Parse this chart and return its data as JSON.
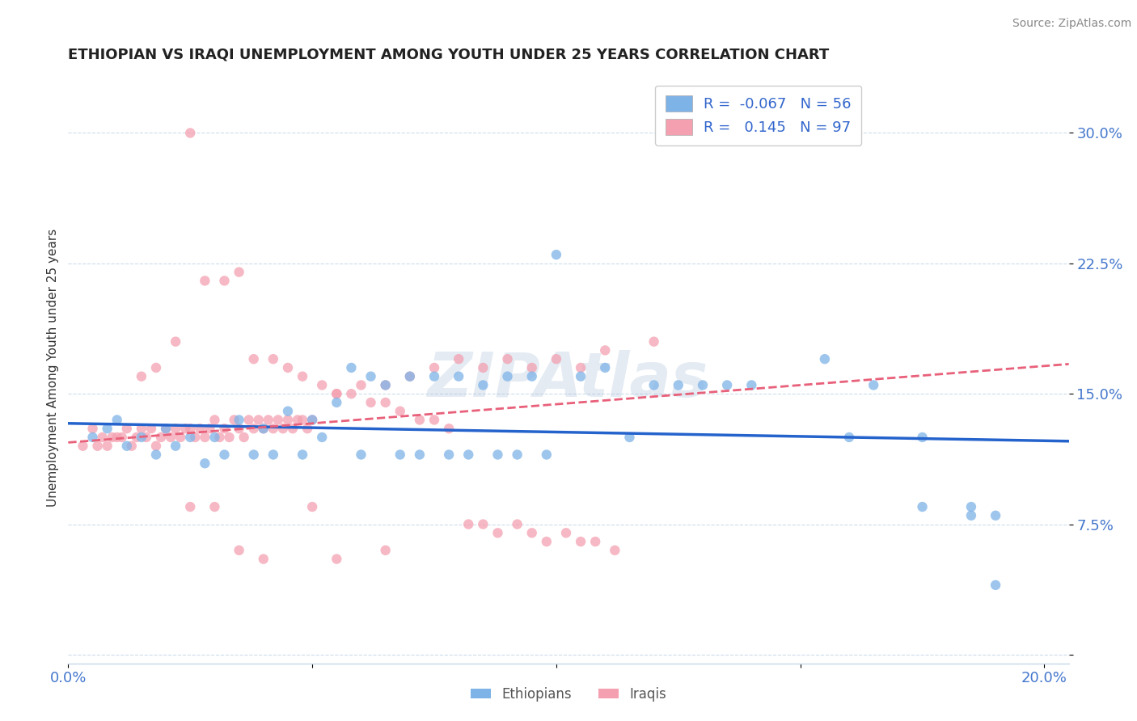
{
  "title": "ETHIOPIAN VS IRAQI UNEMPLOYMENT AMONG YOUTH UNDER 25 YEARS CORRELATION CHART",
  "source": "Source: ZipAtlas.com",
  "ylabel": "Unemployment Among Youth under 25 years",
  "xlim": [
    0.0,
    0.205
  ],
  "ylim": [
    -0.005,
    0.335
  ],
  "yticks": [
    0.0,
    0.075,
    0.15,
    0.225,
    0.3
  ],
  "ytick_labels": [
    "",
    "7.5%",
    "15.0%",
    "22.5%",
    "30.0%"
  ],
  "xticks": [
    0.0,
    0.05,
    0.1,
    0.15,
    0.2
  ],
  "xtick_labels": [
    "0.0%",
    "",
    "",
    "",
    "20.0%"
  ],
  "blue_R": -0.067,
  "blue_N": 56,
  "pink_R": 0.145,
  "pink_N": 97,
  "blue_color": "#7EB3E8",
  "pink_color": "#F4A0B0",
  "trend_blue_color": "#2563CC",
  "trend_pink_color": "#E8607A",
  "watermark": "ZIPAtlas",
  "watermark_color": "#A8BDD8",
  "legend_label_blue": "Ethiopians",
  "legend_label_pink": "Iraqis",
  "blue_scatter_x": [
    0.005,
    0.008,
    0.01,
    0.012,
    0.015,
    0.018,
    0.02,
    0.022,
    0.025,
    0.028,
    0.03,
    0.032,
    0.035,
    0.038,
    0.04,
    0.042,
    0.045,
    0.048,
    0.05,
    0.052,
    0.055,
    0.058,
    0.06,
    0.062,
    0.065,
    0.068,
    0.07,
    0.072,
    0.075,
    0.078,
    0.08,
    0.082,
    0.085,
    0.088,
    0.09,
    0.092,
    0.095,
    0.098,
    0.1,
    0.105,
    0.11,
    0.115,
    0.12,
    0.125,
    0.13,
    0.135,
    0.14,
    0.155,
    0.165,
    0.175,
    0.185,
    0.19,
    0.175,
    0.16,
    0.185,
    0.19
  ],
  "blue_scatter_y": [
    0.125,
    0.13,
    0.135,
    0.12,
    0.125,
    0.115,
    0.13,
    0.12,
    0.125,
    0.11,
    0.125,
    0.115,
    0.135,
    0.115,
    0.13,
    0.115,
    0.14,
    0.115,
    0.135,
    0.125,
    0.145,
    0.165,
    0.115,
    0.16,
    0.155,
    0.115,
    0.16,
    0.115,
    0.16,
    0.115,
    0.16,
    0.115,
    0.155,
    0.115,
    0.16,
    0.115,
    0.16,
    0.115,
    0.23,
    0.16,
    0.165,
    0.125,
    0.155,
    0.155,
    0.155,
    0.155,
    0.155,
    0.17,
    0.155,
    0.085,
    0.08,
    0.08,
    0.125,
    0.125,
    0.085,
    0.04
  ],
  "pink_scatter_x": [
    0.003,
    0.005,
    0.006,
    0.007,
    0.008,
    0.009,
    0.01,
    0.011,
    0.012,
    0.013,
    0.014,
    0.015,
    0.016,
    0.017,
    0.018,
    0.019,
    0.02,
    0.021,
    0.022,
    0.023,
    0.024,
    0.025,
    0.026,
    0.027,
    0.028,
    0.029,
    0.03,
    0.031,
    0.032,
    0.033,
    0.034,
    0.035,
    0.036,
    0.037,
    0.038,
    0.039,
    0.04,
    0.041,
    0.042,
    0.043,
    0.044,
    0.045,
    0.046,
    0.047,
    0.048,
    0.049,
    0.05,
    0.055,
    0.06,
    0.065,
    0.07,
    0.075,
    0.08,
    0.085,
    0.09,
    0.095,
    0.1,
    0.105,
    0.11,
    0.12,
    0.015,
    0.018,
    0.022,
    0.025,
    0.028,
    0.032,
    0.035,
    0.038,
    0.042,
    0.045,
    0.048,
    0.052,
    0.055,
    0.058,
    0.062,
    0.065,
    0.068,
    0.072,
    0.075,
    0.078,
    0.082,
    0.085,
    0.088,
    0.092,
    0.095,
    0.098,
    0.102,
    0.105,
    0.108,
    0.112,
    0.025,
    0.035,
    0.05,
    0.065,
    0.055,
    0.04,
    0.03
  ],
  "pink_scatter_y": [
    0.12,
    0.13,
    0.12,
    0.125,
    0.12,
    0.125,
    0.125,
    0.125,
    0.13,
    0.12,
    0.125,
    0.13,
    0.125,
    0.13,
    0.12,
    0.125,
    0.13,
    0.125,
    0.13,
    0.125,
    0.13,
    0.13,
    0.125,
    0.13,
    0.125,
    0.13,
    0.135,
    0.125,
    0.13,
    0.125,
    0.135,
    0.13,
    0.125,
    0.135,
    0.13,
    0.135,
    0.13,
    0.135,
    0.13,
    0.135,
    0.13,
    0.135,
    0.13,
    0.135,
    0.135,
    0.13,
    0.135,
    0.15,
    0.155,
    0.155,
    0.16,
    0.165,
    0.17,
    0.165,
    0.17,
    0.165,
    0.17,
    0.165,
    0.175,
    0.18,
    0.16,
    0.165,
    0.18,
    0.3,
    0.215,
    0.215,
    0.22,
    0.17,
    0.17,
    0.165,
    0.16,
    0.155,
    0.15,
    0.15,
    0.145,
    0.145,
    0.14,
    0.135,
    0.135,
    0.13,
    0.075,
    0.075,
    0.07,
    0.075,
    0.07,
    0.065,
    0.07,
    0.065,
    0.065,
    0.06,
    0.085,
    0.06,
    0.085,
    0.06,
    0.055,
    0.055,
    0.085
  ]
}
